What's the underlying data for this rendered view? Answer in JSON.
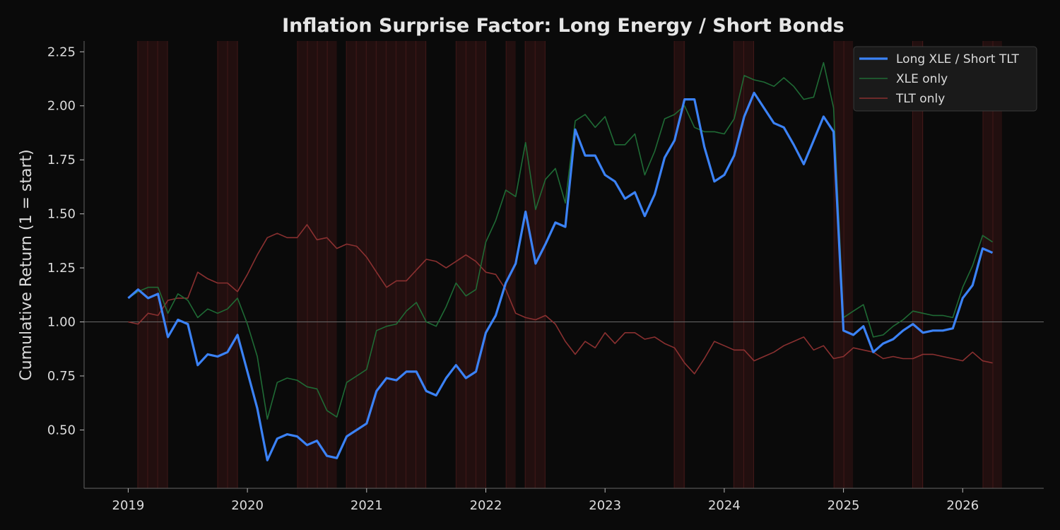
{
  "chart_data": {
    "type": "line",
    "title": "Inflation Surprise Factor: Long Energy / Short Bonds",
    "xlabel": "",
    "ylabel": "Cumulative Return (1 = start)",
    "xlim": [
      2018.63,
      2026.68
    ],
    "ylim": [
      0.23,
      2.3
    ],
    "x_ticks": [
      2019,
      2020,
      2021,
      2022,
      2023,
      2024,
      2025,
      2026
    ],
    "y_ticks": [
      0.5,
      0.75,
      1.0,
      1.25,
      1.5,
      1.75,
      2.0,
      2.25
    ],
    "y_tick_labels": [
      "0.50",
      "0.75",
      "1.00",
      "1.25",
      "1.50",
      "1.75",
      "2.00",
      "2.25"
    ],
    "reference_line": 1.0,
    "grid": false,
    "legend_position": "top-right",
    "colors": {
      "background": "#0a0a0a",
      "long_short": "#3b82f6",
      "xle": "#1f6b35",
      "tlt": "#8a3030",
      "shade": "#3a1414"
    },
    "shaded_periods": [
      [
        2019.08,
        2019.33
      ],
      [
        2019.75,
        2019.92
      ],
      [
        2020.42,
        2020.75
      ],
      [
        2020.83,
        2021.5
      ],
      [
        2021.75,
        2022.0
      ],
      [
        2022.17,
        2022.25
      ],
      [
        2022.33,
        2022.5
      ],
      [
        2023.58,
        2023.67
      ],
      [
        2024.08,
        2024.25
      ],
      [
        2024.92,
        2025.08
      ],
      [
        2025.58,
        2025.67
      ],
      [
        2026.17,
        2026.33
      ]
    ],
    "x": [
      2019.0,
      2019.083,
      2019.167,
      2019.25,
      2019.333,
      2019.417,
      2019.5,
      2019.583,
      2019.667,
      2019.75,
      2019.833,
      2019.917,
      2020.0,
      2020.083,
      2020.167,
      2020.25,
      2020.333,
      2020.417,
      2020.5,
      2020.583,
      2020.667,
      2020.75,
      2020.833,
      2020.917,
      2021.0,
      2021.083,
      2021.167,
      2021.25,
      2021.333,
      2021.417,
      2021.5,
      2021.583,
      2021.667,
      2021.75,
      2021.833,
      2021.917,
      2022.0,
      2022.083,
      2022.167,
      2022.25,
      2022.333,
      2022.417,
      2022.5,
      2022.583,
      2022.667,
      2022.75,
      2022.833,
      2022.917,
      2023.0,
      2023.083,
      2023.167,
      2023.25,
      2023.333,
      2023.417,
      2023.5,
      2023.583,
      2023.667,
      2023.75,
      2023.833,
      2023.917,
      2024.0,
      2024.083,
      2024.167,
      2024.25,
      2024.333,
      2024.417,
      2024.5,
      2024.583,
      2024.667,
      2024.75,
      2024.833,
      2024.917,
      2025.0,
      2025.083,
      2025.167,
      2025.25,
      2025.333,
      2025.417,
      2025.5,
      2025.583,
      2025.667,
      2025.75,
      2025.833,
      2025.917,
      2026.0,
      2026.083,
      2026.167,
      2026.25
    ],
    "series": [
      {
        "name": "Long XLE / Short TLT",
        "values": [
          1.11,
          1.15,
          1.11,
          1.13,
          0.93,
          1.01,
          0.99,
          0.8,
          0.85,
          0.84,
          0.86,
          0.94,
          0.77,
          0.6,
          0.36,
          0.46,
          0.48,
          0.47,
          0.43,
          0.45,
          0.38,
          0.37,
          0.47,
          0.5,
          0.53,
          0.68,
          0.74,
          0.73,
          0.77,
          0.77,
          0.68,
          0.66,
          0.74,
          0.8,
          0.74,
          0.77,
          0.95,
          1.03,
          1.18,
          1.27,
          1.51,
          1.27,
          1.36,
          1.46,
          1.44,
          1.89,
          1.77,
          1.77,
          1.68,
          1.65,
          1.57,
          1.6,
          1.49,
          1.59,
          1.76,
          1.84,
          2.03,
          2.03,
          1.81,
          1.65,
          1.68,
          1.77,
          1.95,
          2.06,
          1.99,
          1.92,
          1.9,
          1.82,
          1.73,
          1.84,
          1.95,
          1.88,
          0.96,
          0.94,
          0.98,
          0.86,
          0.9,
          0.92,
          0.96,
          0.99,
          0.95,
          0.96,
          0.96,
          0.97,
          1.11,
          1.17,
          1.34,
          1.32
        ]
      },
      {
        "name": "XLE only",
        "values": [
          1.11,
          1.14,
          1.16,
          1.16,
          1.04,
          1.13,
          1.1,
          1.02,
          1.06,
          1.04,
          1.06,
          1.11,
          0.99,
          0.84,
          0.55,
          0.72,
          0.74,
          0.73,
          0.7,
          0.69,
          0.59,
          0.56,
          0.72,
          0.75,
          0.78,
          0.96,
          0.98,
          0.99,
          1.05,
          1.09,
          1.0,
          0.98,
          1.07,
          1.18,
          1.12,
          1.15,
          1.37,
          1.47,
          1.61,
          1.58,
          1.83,
          1.52,
          1.66,
          1.71,
          1.55,
          1.93,
          1.96,
          1.9,
          1.95,
          1.82,
          1.82,
          1.87,
          1.68,
          1.79,
          1.94,
          1.96,
          2.0,
          1.9,
          1.88,
          1.88,
          1.87,
          1.94,
          2.14,
          2.12,
          2.11,
          2.09,
          2.13,
          2.09,
          2.03,
          2.04,
          2.2,
          1.99,
          1.02,
          1.05,
          1.08,
          0.93,
          0.94,
          0.98,
          1.01,
          1.05,
          1.04,
          1.03,
          1.03,
          1.02,
          1.16,
          1.26,
          1.4,
          1.37
        ]
      },
      {
        "name": "TLT only",
        "values": [
          1.0,
          0.99,
          1.04,
          1.03,
          1.1,
          1.11,
          1.11,
          1.23,
          1.2,
          1.18,
          1.18,
          1.14,
          1.22,
          1.31,
          1.39,
          1.41,
          1.39,
          1.39,
          1.45,
          1.38,
          1.39,
          1.34,
          1.36,
          1.35,
          1.3,
          1.23,
          1.16,
          1.19,
          1.19,
          1.24,
          1.29,
          1.28,
          1.25,
          1.28,
          1.31,
          1.28,
          1.23,
          1.22,
          1.15,
          1.04,
          1.02,
          1.01,
          1.03,
          0.99,
          0.91,
          0.85,
          0.91,
          0.88,
          0.95,
          0.9,
          0.95,
          0.95,
          0.92,
          0.93,
          0.9,
          0.88,
          0.81,
          0.76,
          0.83,
          0.91,
          0.89,
          0.87,
          0.87,
          0.82,
          0.84,
          0.86,
          0.89,
          0.91,
          0.93,
          0.87,
          0.89,
          0.83,
          0.84,
          0.88,
          0.87,
          0.86,
          0.83,
          0.84,
          0.83,
          0.83,
          0.85,
          0.85,
          0.84,
          0.83,
          0.82,
          0.86,
          0.82,
          0.81
        ]
      }
    ]
  }
}
